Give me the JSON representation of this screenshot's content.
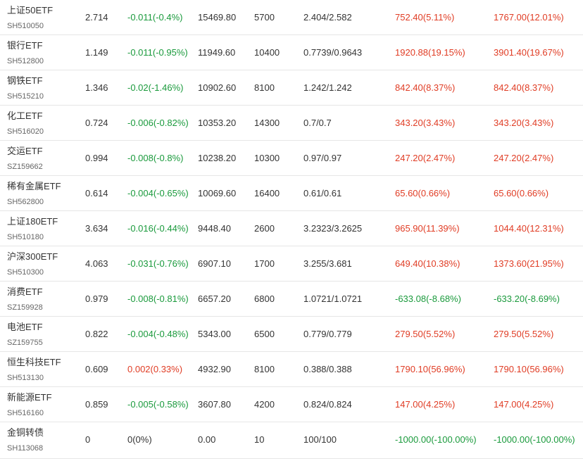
{
  "colors": {
    "up": "#e03c24",
    "down": "#1a9a3c",
    "text": "#333333",
    "code": "#666666",
    "border": "#e6e6e6"
  },
  "rows": [
    {
      "name": "上证50ETF",
      "code": "SH510050",
      "price": "2.714",
      "change": "-0.011(-0.4%)",
      "change_dir": "down",
      "amount": "15469.80",
      "qty": "5700",
      "cost": "2.404/2.582",
      "pnl_a": "752.40(5.11%)",
      "pnl_a_dir": "up",
      "pnl_b": "1767.00(12.01%)",
      "pnl_b_dir": "up"
    },
    {
      "name": "银行ETF",
      "code": "SH512800",
      "price": "1.149",
      "change": "-0.011(-0.95%)",
      "change_dir": "down",
      "amount": "11949.60",
      "qty": "10400",
      "cost": "0.7739/0.9643",
      "pnl_a": "1920.88(19.15%)",
      "pnl_a_dir": "up",
      "pnl_b": "3901.40(19.67%)",
      "pnl_b_dir": "up"
    },
    {
      "name": "钢铁ETF",
      "code": "SH515210",
      "price": "1.346",
      "change": "-0.02(-1.46%)",
      "change_dir": "down",
      "amount": "10902.60",
      "qty": "8100",
      "cost": "1.242/1.242",
      "pnl_a": "842.40(8.37%)",
      "pnl_a_dir": "up",
      "pnl_b": "842.40(8.37%)",
      "pnl_b_dir": "up"
    },
    {
      "name": "化工ETF",
      "code": "SH516020",
      "price": "0.724",
      "change": "-0.006(-0.82%)",
      "change_dir": "down",
      "amount": "10353.20",
      "qty": "14300",
      "cost": "0.7/0.7",
      "pnl_a": "343.20(3.43%)",
      "pnl_a_dir": "up",
      "pnl_b": "343.20(3.43%)",
      "pnl_b_dir": "up"
    },
    {
      "name": "交运ETF",
      "code": "SZ159662",
      "price": "0.994",
      "change": "-0.008(-0.8%)",
      "change_dir": "down",
      "amount": "10238.20",
      "qty": "10300",
      "cost": "0.97/0.97",
      "pnl_a": "247.20(2.47%)",
      "pnl_a_dir": "up",
      "pnl_b": "247.20(2.47%)",
      "pnl_b_dir": "up"
    },
    {
      "name": "稀有金属ETF",
      "code": "SH562800",
      "price": "0.614",
      "change": "-0.004(-0.65%)",
      "change_dir": "down",
      "amount": "10069.60",
      "qty": "16400",
      "cost": "0.61/0.61",
      "pnl_a": "65.60(0.66%)",
      "pnl_a_dir": "up",
      "pnl_b": "65.60(0.66%)",
      "pnl_b_dir": "up"
    },
    {
      "name": "上证180ETF",
      "code": "SH510180",
      "price": "3.634",
      "change": "-0.016(-0.44%)",
      "change_dir": "down",
      "amount": "9448.40",
      "qty": "2600",
      "cost": "3.2323/3.2625",
      "pnl_a": "965.90(11.39%)",
      "pnl_a_dir": "up",
      "pnl_b": "1044.40(12.31%)",
      "pnl_b_dir": "up"
    },
    {
      "name": "沪深300ETF",
      "code": "SH510300",
      "price": "4.063",
      "change": "-0.031(-0.76%)",
      "change_dir": "down",
      "amount": "6907.10",
      "qty": "1700",
      "cost": "3.255/3.681",
      "pnl_a": "649.40(10.38%)",
      "pnl_a_dir": "up",
      "pnl_b": "1373.60(21.95%)",
      "pnl_b_dir": "up"
    },
    {
      "name": "消费ETF",
      "code": "SZ159928",
      "price": "0.979",
      "change": "-0.008(-0.81%)",
      "change_dir": "down",
      "amount": "6657.20",
      "qty": "6800",
      "cost": "1.0721/1.0721",
      "pnl_a": "-633.08(-8.68%)",
      "pnl_a_dir": "down",
      "pnl_b": "-633.20(-8.69%)",
      "pnl_b_dir": "down"
    },
    {
      "name": "电池ETF",
      "code": "SZ159755",
      "price": "0.822",
      "change": "-0.004(-0.48%)",
      "change_dir": "down",
      "amount": "5343.00",
      "qty": "6500",
      "cost": "0.779/0.779",
      "pnl_a": "279.50(5.52%)",
      "pnl_a_dir": "up",
      "pnl_b": "279.50(5.52%)",
      "pnl_b_dir": "up"
    },
    {
      "name": "恒生科技ETF",
      "code": "SH513130",
      "price": "0.609",
      "change": "0.002(0.33%)",
      "change_dir": "up",
      "amount": "4932.90",
      "qty": "8100",
      "cost": "0.388/0.388",
      "pnl_a": "1790.10(56.96%)",
      "pnl_a_dir": "up",
      "pnl_b": "1790.10(56.96%)",
      "pnl_b_dir": "up"
    },
    {
      "name": "新能源ETF",
      "code": "SH516160",
      "price": "0.859",
      "change": "-0.005(-0.58%)",
      "change_dir": "down",
      "amount": "3607.80",
      "qty": "4200",
      "cost": "0.824/0.824",
      "pnl_a": "147.00(4.25%)",
      "pnl_a_dir": "up",
      "pnl_b": "147.00(4.25%)",
      "pnl_b_dir": "up"
    },
    {
      "name": "金铜转债",
      "code": "SH113068",
      "price": "0",
      "change": "0(0%)",
      "change_dir": "flat",
      "amount": "0.00",
      "qty": "10",
      "cost": "100/100",
      "pnl_a": "-1000.00(-100.00%)",
      "pnl_a_dir": "down",
      "pnl_b": "-1000.00(-100.00%)",
      "pnl_b_dir": "down"
    }
  ]
}
